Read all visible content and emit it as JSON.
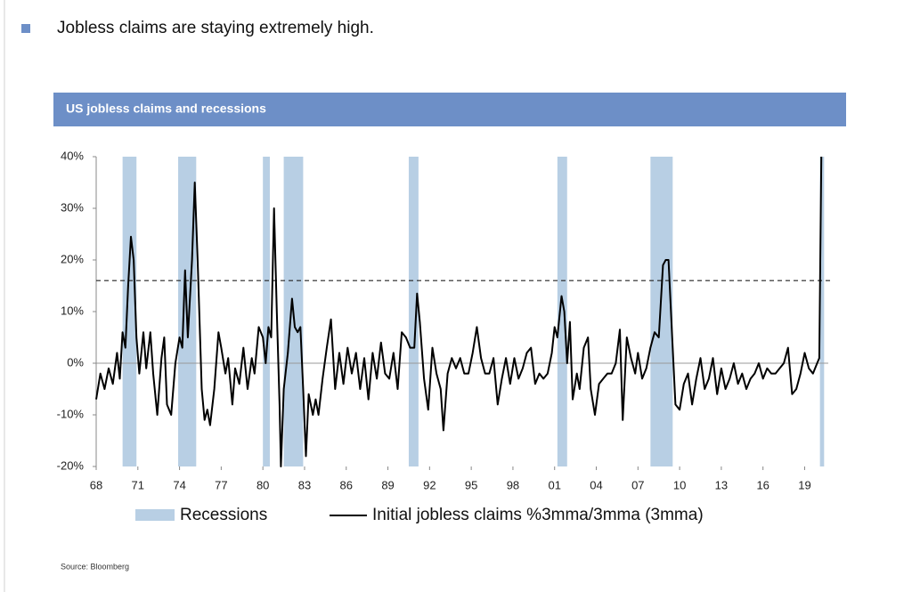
{
  "headline": "Jobless claims are staying extremely high.",
  "source": "Source: Bloomberg",
  "chart_data": {
    "type": "line",
    "title": "US jobless claims and recessions",
    "xlim": [
      1968,
      2020.7
    ],
    "xticks": [
      {
        "value": 1968,
        "label": "68"
      },
      {
        "value": 1971,
        "label": "71"
      },
      {
        "value": 1974,
        "label": "74"
      },
      {
        "value": 1977,
        "label": "77"
      },
      {
        "value": 1980,
        "label": "80"
      },
      {
        "value": 1983,
        "label": "83"
      },
      {
        "value": 1986,
        "label": "86"
      },
      {
        "value": 1989,
        "label": "89"
      },
      {
        "value": 1992,
        "label": "92"
      },
      {
        "value": 1995,
        "label": "95"
      },
      {
        "value": 1998,
        "label": "98"
      },
      {
        "value": 2001,
        "label": "01"
      },
      {
        "value": 2004,
        "label": "04"
      },
      {
        "value": 2007,
        "label": "07"
      },
      {
        "value": 2010,
        "label": "10"
      },
      {
        "value": 2013,
        "label": "13"
      },
      {
        "value": 2016,
        "label": "16"
      },
      {
        "value": 2019,
        "label": "19"
      }
    ],
    "ylim": [
      -20,
      40
    ],
    "yticks": [
      {
        "value": -20,
        "label": "-20%"
      },
      {
        "value": -10,
        "label": "-10%"
      },
      {
        "value": 0,
        "label": "0%"
      },
      {
        "value": 10,
        "label": "10%"
      },
      {
        "value": 20,
        "label": "20%"
      },
      {
        "value": 30,
        "label": "30%"
      },
      {
        "value": 40,
        "label": "40%"
      }
    ],
    "threshold": 16,
    "series": [
      {
        "name": "Recessions",
        "color": "#b8cfe4",
        "periods": [
          [
            1969.9,
            1970.9
          ],
          [
            1973.9,
            1975.2
          ],
          [
            1980.0,
            1980.5
          ],
          [
            1981.5,
            1982.9
          ],
          [
            1990.5,
            1991.2
          ],
          [
            2001.2,
            2001.9
          ],
          [
            2007.9,
            2009.5
          ],
          [
            2020.1,
            2020.4
          ]
        ]
      },
      {
        "name": "Initial jobless claims %3mma/3mma (3mma)",
        "color": "#000000",
        "x": [
          1968.0,
          1968.3,
          1968.6,
          1968.9,
          1969.2,
          1969.5,
          1969.7,
          1969.9,
          1970.1,
          1970.3,
          1970.5,
          1970.7,
          1970.9,
          1971.1,
          1971.4,
          1971.6,
          1971.9,
          1972.1,
          1972.4,
          1972.7,
          1972.9,
          1973.1,
          1973.4,
          1973.7,
          1974.0,
          1974.2,
          1974.4,
          1974.6,
          1974.9,
          1975.1,
          1975.3,
          1975.6,
          1975.8,
          1976.0,
          1976.2,
          1976.5,
          1976.8,
          1977.0,
          1977.3,
          1977.5,
          1977.8,
          1978.0,
          1978.3,
          1978.6,
          1978.9,
          1979.2,
          1979.4,
          1979.7,
          1980.0,
          1980.2,
          1980.4,
          1980.6,
          1980.8,
          1981.0,
          1981.2,
          1981.3,
          1981.5,
          1981.8,
          1982.1,
          1982.3,
          1982.5,
          1982.7,
          1982.9,
          1983.1,
          1983.3,
          1983.6,
          1983.8,
          1984.0,
          1984.3,
          1984.6,
          1984.9,
          1985.2,
          1985.5,
          1985.8,
          1986.1,
          1986.4,
          1986.7,
          1987.0,
          1987.3,
          1987.6,
          1987.9,
          1988.2,
          1988.5,
          1988.8,
          1989.1,
          1989.4,
          1989.7,
          1990.0,
          1990.3,
          1990.6,
          1990.9,
          1991.1,
          1991.3,
          1991.6,
          1991.9,
          1992.2,
          1992.5,
          1992.8,
          1993.0,
          1993.3,
          1993.6,
          1993.9,
          1994.2,
          1994.5,
          1994.8,
          1995.1,
          1995.4,
          1995.7,
          1996.0,
          1996.3,
          1996.6,
          1996.9,
          1997.2,
          1997.5,
          1997.8,
          1998.1,
          1998.4,
          1998.7,
          1999.0,
          1999.3,
          1999.6,
          1999.9,
          2000.2,
          2000.5,
          2000.8,
          2001.0,
          2001.2,
          2001.5,
          2001.7,
          2001.9,
          2002.1,
          2002.3,
          2002.6,
          2002.8,
          2003.1,
          2003.4,
          2003.6,
          2003.9,
          2004.2,
          2004.5,
          2004.8,
          2005.1,
          2005.4,
          2005.7,
          2005.9,
          2006.2,
          2006.5,
          2006.8,
          2007.0,
          2007.3,
          2007.6,
          2007.9,
          2008.2,
          2008.5,
          2008.8,
          2009.0,
          2009.2,
          2009.5,
          2009.7,
          2010.0,
          2010.3,
          2010.6,
          2010.9,
          2011.2,
          2011.5,
          2011.8,
          2012.1,
          2012.4,
          2012.7,
          2013.0,
          2013.3,
          2013.6,
          2013.9,
          2014.2,
          2014.5,
          2014.8,
          2015.1,
          2015.4,
          2015.7,
          2016.0,
          2016.3,
          2016.6,
          2016.9,
          2017.2,
          2017.5,
          2017.8,
          2018.1,
          2018.4,
          2018.7,
          2019.0,
          2019.3,
          2019.6,
          2019.9,
          2020.05,
          2020.2
        ],
        "values": [
          -7,
          -2,
          -5,
          -1,
          -4,
          2,
          -3,
          6,
          3,
          15,
          24.5,
          20,
          5,
          -2,
          6,
          -1,
          6,
          -2,
          -10,
          1,
          5,
          -8,
          -10,
          0,
          5,
          3,
          18,
          5,
          20,
          35,
          20,
          -5,
          -11,
          -9,
          -12,
          -5,
          6,
          3,
          -2,
          1,
          -8,
          -1,
          -4,
          3,
          -5,
          1,
          -2,
          7,
          5,
          0,
          7,
          5,
          30,
          10,
          -8,
          -20,
          -5,
          2,
          12.5,
          7,
          6,
          7,
          -5,
          -18,
          -6,
          -10,
          -7,
          -10,
          -3,
          3,
          8.5,
          -5,
          2,
          -4,
          3,
          -2,
          2,
          -5,
          1,
          -7,
          2,
          -3,
          4,
          -2,
          -3,
          2,
          -5,
          6,
          5,
          3,
          3,
          13.5,
          8,
          -3,
          -9,
          3,
          -2,
          -5,
          -13,
          -2,
          1,
          -1,
          1,
          -2,
          -2,
          2,
          7,
          1,
          -2,
          -2,
          1,
          -8,
          -3,
          1,
          -4,
          1,
          -3,
          -1,
          2,
          3,
          -4,
          -2,
          -3,
          -2,
          2,
          7,
          5,
          13,
          10,
          0,
          8,
          -7,
          -2,
          -5,
          3,
          5,
          -5,
          -10,
          -4,
          -3,
          -2,
          -2,
          0,
          6.5,
          -11,
          5,
          1,
          -2,
          2,
          -3,
          -1,
          3,
          6,
          5,
          19,
          20,
          20,
          3,
          -8,
          -9,
          -4,
          -2,
          -8,
          -3,
          1,
          -5,
          -3,
          1,
          -6,
          -1,
          -5,
          -3,
          0,
          -4,
          -2,
          -5,
          -3,
          -2,
          0,
          -3,
          -1,
          -2,
          -2,
          -1,
          0,
          3,
          -6,
          -5,
          -2,
          2,
          -1,
          -2,
          0,
          1,
          40
        ]
      }
    ]
  }
}
